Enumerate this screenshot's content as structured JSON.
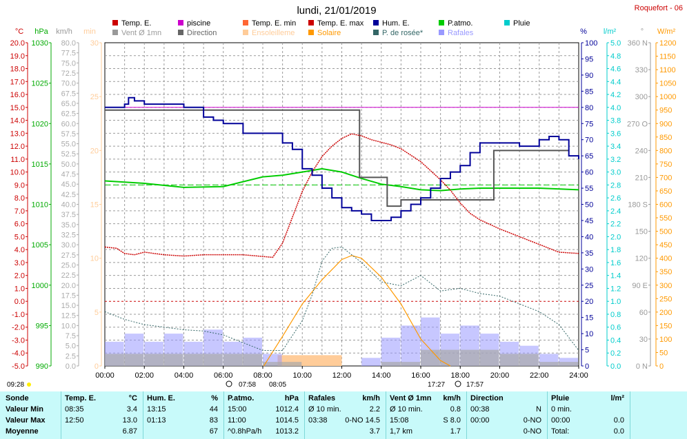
{
  "title": "lundi, 21/01/2019",
  "station": "Roquefort - 06",
  "legend": [
    {
      "label": "Temp. E.",
      "color": "#cc0000"
    },
    {
      "label": "piscine",
      "color": "#cc00cc"
    },
    {
      "label": "Temp. E. min",
      "color": "#ff6633"
    },
    {
      "label": "Temp. E. max",
      "color": "#cc0000"
    },
    {
      "label": "Hum. E.",
      "color": "#000099"
    },
    {
      "label": "P.atmo.",
      "color": "#00cc00"
    },
    {
      "label": "Pluie",
      "color": "#00cccc"
    },
    {
      "label": "Vent Ø 1mn",
      "color": "#999999"
    },
    {
      "label": "Direction",
      "color": "#666666"
    },
    {
      "label": "Ensoleilleme",
      "color": "#ffcc99"
    },
    {
      "label": "Solaire",
      "color": "#ff9900"
    },
    {
      "label": "P. de rosée*",
      "color": "#336666"
    },
    {
      "label": "Rafales",
      "color": "#9999ff"
    }
  ],
  "axis_units": {
    "temp": "°C",
    "press": "hPa",
    "wind": "km/h",
    "min": "min",
    "hum": "%",
    "rain": "l/m²",
    "dir": "°",
    "sol": "W/m²"
  },
  "x_ticks": [
    "00:00",
    "02:00",
    "04:00",
    "06:00",
    "08:00",
    "10:00",
    "12:00",
    "14:00",
    "16:00",
    "18:00",
    "20:00",
    "22:00",
    "24:00"
  ],
  "sun": {
    "left": "09:28",
    "rise": "07:58",
    "rise2": "08:05",
    "set": "17:27",
    "set2": "17:57"
  },
  "colors": {
    "temp": "#cc0000",
    "press": "#00cc00",
    "hum": "#000099",
    "solar": "#ff9900",
    "sun_fill": "#ffcc99",
    "dew": "#336666",
    "gust": "#9999ff",
    "wind": "#aaaaaa",
    "dir": "#555555",
    "pool": "#cc00cc",
    "panel": "#c8fafa"
  },
  "chart_data": {
    "type": "line",
    "title": "lundi, 21/01/2019",
    "x_unit": "hours",
    "xlim": [
      0,
      24
    ],
    "axes": {
      "temp_C": [
        -5,
        20
      ],
      "press_hPa": [
        990,
        1030
      ],
      "wind_kmh": [
        0,
        80
      ],
      "sun_min": [
        0,
        30
      ],
      "hum_pct": [
        0,
        100
      ],
      "rain_lm2": [
        0,
        5
      ],
      "dir_deg": [
        0,
        360
      ],
      "solar_Wm2": [
        0,
        1200
      ]
    },
    "series": [
      {
        "name": "Temp. E.",
        "axis": "temp_C",
        "x": [
          0,
          0.6,
          1,
          1.5,
          2,
          3,
          4,
          5,
          6,
          7,
          8.5,
          9,
          9.5,
          10,
          10.5,
          11,
          11.5,
          12,
          12.5,
          13,
          13.5,
          14,
          14.5,
          15,
          16,
          16.5,
          17,
          17.5,
          18,
          18.5,
          19,
          20,
          21,
          22,
          23,
          24
        ],
        "y": [
          4.2,
          4.1,
          3.7,
          3.6,
          3.8,
          3.6,
          3.5,
          3.6,
          3.6,
          3.6,
          3.4,
          4.5,
          6.5,
          8.5,
          10.0,
          11.2,
          12.0,
          12.6,
          12.95,
          12.8,
          12.5,
          12.3,
          12.1,
          11.8,
          10.8,
          10.1,
          9.4,
          8.6,
          7.6,
          6.8,
          6.3,
          5.6,
          5.0,
          4.4,
          3.8,
          3.7
        ]
      },
      {
        "name": "Hum. E.",
        "axis": "hum_pct",
        "x": [
          0,
          0.5,
          1,
          1.2,
          1.5,
          2,
          3,
          4,
          5,
          5.5,
          6,
          7,
          8,
          9,
          9.5,
          10,
          10.5,
          11,
          11.5,
          12,
          12.5,
          13,
          13.5,
          14,
          14.5,
          15,
          15.5,
          16,
          16.5,
          17,
          17.5,
          18,
          18.5,
          19,
          20,
          21,
          22,
          22.5,
          23,
          23.5,
          24
        ],
        "y": [
          80,
          80,
          81,
          83,
          82,
          81,
          81,
          80,
          77,
          76,
          75,
          72,
          72,
          69,
          67,
          61,
          59,
          55,
          52,
          49,
          48,
          47,
          45,
          45,
          46,
          48,
          50,
          52,
          55,
          58,
          60,
          62,
          66,
          69,
          69,
          68,
          70,
          71,
          70,
          65,
          64
        ]
      },
      {
        "name": "P.atmo.",
        "axis": "press_hPa",
        "x": [
          0,
          2,
          4,
          6,
          8,
          9,
          10,
          11,
          12,
          13,
          14,
          15,
          16,
          17,
          18,
          19,
          20,
          22,
          24
        ],
        "y": [
          1012.9,
          1012.6,
          1012.1,
          1012.2,
          1013.4,
          1013.6,
          1014.0,
          1014.4,
          1014.0,
          1013.2,
          1012.5,
          1012.2,
          1011.8,
          1011.7,
          1011.9,
          1012.0,
          1012.0,
          1012.0,
          1011.8
        ]
      },
      {
        "name": "P. de rosée*",
        "axis": "temp_C",
        "x": [
          0,
          1,
          2,
          3,
          4,
          5,
          6,
          7,
          8,
          9,
          10,
          10.5,
          11,
          11.5,
          12,
          13,
          14,
          15,
          16,
          17,
          18,
          19,
          20,
          21,
          22,
          23,
          24
        ],
        "y": [
          -0.8,
          -1.4,
          -1.8,
          -2.0,
          -2.2,
          -2.3,
          -2.6,
          -3.2,
          -3.8,
          -3.8,
          -1.5,
          0.5,
          3.1,
          4.1,
          4.2,
          3.0,
          1.5,
          1.2,
          2.0,
          0.8,
          1.0,
          0.6,
          0.4,
          -0.2,
          -0.8,
          -1.8,
          -3.8
        ]
      },
      {
        "name": "Solaire",
        "axis": "solar_Wm2",
        "x": [
          8.05,
          9,
          10,
          11,
          12,
          12.5,
          13,
          14,
          15,
          16,
          17,
          17.5
        ],
        "y": [
          0,
          110,
          230,
          320,
          395,
          410,
          400,
          330,
          230,
          100,
          20,
          0
        ]
      },
      {
        "name": "Ensoleilleme",
        "axis": "sun_min",
        "x": [
          8.75,
          12
        ],
        "y": [
          1,
          1
        ]
      },
      {
        "name": "Rafales",
        "axis": "wind_kmh",
        "x": [
          0,
          1,
          2,
          3,
          4,
          5,
          6,
          7,
          8,
          9,
          10,
          11,
          12,
          13,
          14,
          15,
          16,
          17,
          18,
          19,
          20,
          21,
          22,
          23,
          24
        ],
        "y": [
          6,
          8,
          6,
          8,
          6,
          9,
          6,
          7,
          3,
          0,
          0,
          0,
          0,
          2,
          7,
          10,
          12,
          8,
          10,
          8,
          6,
          5,
          3,
          2,
          2
        ]
      },
      {
        "name": "Vent Ø 1mn",
        "axis": "wind_kmh",
        "x": [
          0,
          2,
          4,
          6,
          8,
          10,
          12,
          14,
          16,
          18,
          20,
          22,
          24
        ],
        "y": [
          3,
          3,
          3,
          3,
          1,
          0,
          0,
          1,
          4,
          4,
          3,
          1,
          1
        ]
      },
      {
        "name": "Direction",
        "axis": "dir_deg",
        "x": [
          0,
          8.05,
          12.9,
          14.3,
          15.0,
          16.7,
          19.7,
          22.4,
          23.5
        ],
        "y": [
          285,
          285,
          210,
          178,
          185,
          185,
          240,
          240,
          240
        ]
      },
      {
        "name": "piscine",
        "axis": "temp_C",
        "x": [
          0,
          24
        ],
        "y": [
          15.0,
          15.0
        ]
      }
    ],
    "reference_lines": {
      "temp_zero_C": 0,
      "press_dash_hPa": 1012.4,
      "hum_min_pct": 44,
      "hum_max_pct": 83
    }
  },
  "table": {
    "row_labels": [
      "Sonde",
      "Valeur Min",
      "Valeur Max",
      "Moyenne"
    ],
    "columns": [
      {
        "head": "Temp. E.",
        "unit": "°C",
        "rows": [
          [
            "08:35",
            "3.4"
          ],
          [
            "12:50",
            "13.0"
          ],
          [
            "",
            "6.87"
          ]
        ]
      },
      {
        "head": "Hum. E.",
        "unit": "%",
        "rows": [
          [
            "13:15",
            "44"
          ],
          [
            "01:13",
            "83"
          ],
          [
            "",
            "67"
          ]
        ]
      },
      {
        "head": "P.atmo.",
        "unit": "hPa",
        "rows": [
          [
            "15:00",
            "1012.4"
          ],
          [
            "11:00",
            "1014.5"
          ],
          [
            "^0.8hPa/h",
            "1013.2"
          ]
        ]
      },
      {
        "head": "Rafales",
        "unit": "km/h",
        "rows": [
          [
            "Ø 10 min.",
            "2.2"
          ],
          [
            "03:38",
            "0-NO 14.5"
          ],
          [
            "",
            "3.7"
          ]
        ]
      },
      {
        "head": "Vent Ø 1mn",
        "unit": "km/h",
        "rows": [
          [
            "Ø 10 min.",
            "0.8"
          ],
          [
            "15:08",
            "S 8.0"
          ],
          [
            "1,7 km",
            "1.7"
          ]
        ]
      },
      {
        "head": "Direction",
        "unit": "",
        "rows": [
          [
            "00:38",
            "N"
          ],
          [
            "00:00",
            "0-NO"
          ],
          [
            "",
            "0-NO"
          ]
        ]
      },
      {
        "head": "Pluie",
        "unit": "l/m²",
        "rows": [
          [
            "0 min.",
            ""
          ],
          [
            "00:00",
            "0.0"
          ],
          [
            "Total:",
            "0.0"
          ]
        ]
      }
    ]
  }
}
